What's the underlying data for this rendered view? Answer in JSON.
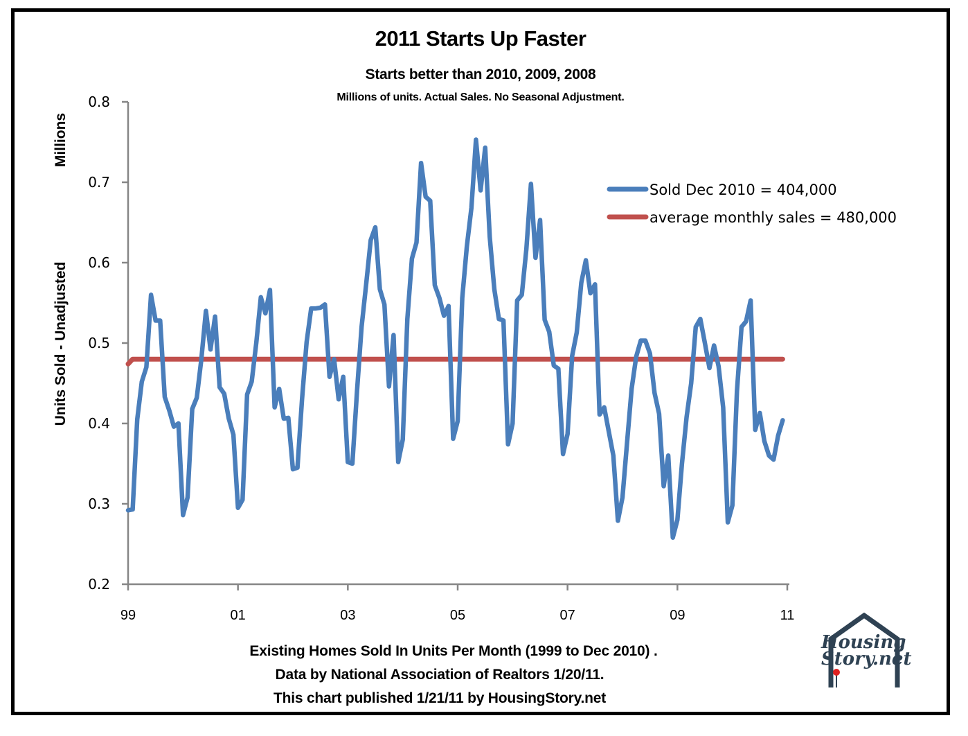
{
  "chart_data": {
    "type": "line",
    "title": "2011 Starts Up Faster",
    "subtitle": "Starts better than 2010, 2009, 2008",
    "note": "Millions of units. Actual Sales. No Seasonal Adjustment.",
    "ylabel_units": "Millions",
    "ylabel": "Units Sold - Unadjusted",
    "xlabel": "",
    "ylim": [
      0.2,
      0.8
    ],
    "yticks": [
      "0.2",
      "0.3",
      "0.4",
      "0.5",
      "0.6",
      "0.7",
      "0.8"
    ],
    "ytick_values": [
      0.2,
      0.3,
      0.4,
      0.5,
      0.6,
      0.7,
      0.8
    ],
    "xticks": [
      "99",
      "01",
      "03",
      "05",
      "07",
      "09",
      "11"
    ],
    "xtick_values": [
      1999,
      2001,
      2003,
      2005,
      2007,
      2009,
      2011
    ],
    "xlim": [
      1999,
      2011
    ],
    "grid": false,
    "legend_position": "top-right",
    "series": [
      {
        "name": "Sold Dec 2010 =  404,000",
        "color": "#4a7ebb",
        "x_start": 1999.0,
        "x_step_months": 1,
        "values": [
          0.292,
          0.293,
          0.405,
          0.452,
          0.47,
          0.56,
          0.528,
          0.528,
          0.433,
          0.416,
          0.396,
          0.4,
          0.286,
          0.308,
          0.418,
          0.432,
          0.48,
          0.54,
          0.492,
          0.533,
          0.445,
          0.437,
          0.406,
          0.386,
          0.295,
          0.305,
          0.436,
          0.452,
          0.5,
          0.557,
          0.537,
          0.566,
          0.42,
          0.443,
          0.406,
          0.407,
          0.343,
          0.345,
          0.43,
          0.501,
          0.543,
          0.543,
          0.544,
          0.548,
          0.458,
          0.48,
          0.43,
          0.458,
          0.352,
          0.35,
          0.44,
          0.52,
          0.573,
          0.628,
          0.644,
          0.567,
          0.548,
          0.446,
          0.51,
          0.352,
          0.38,
          0.53,
          0.605,
          0.625,
          0.724,
          0.682,
          0.677,
          0.572,
          0.556,
          0.534,
          0.546,
          0.381,
          0.403,
          0.556,
          0.62,
          0.668,
          0.753,
          0.69,
          0.743,
          0.632,
          0.567,
          0.53,
          0.528,
          0.374,
          0.4,
          0.553,
          0.56,
          0.617,
          0.698,
          0.606,
          0.653,
          0.529,
          0.514,
          0.472,
          0.468,
          0.362,
          0.387,
          0.484,
          0.513,
          0.575,
          0.603,
          0.562,
          0.573,
          0.411,
          0.42,
          0.39,
          0.36,
          0.279,
          0.308,
          0.376,
          0.443,
          0.483,
          0.503,
          0.503,
          0.487,
          0.438,
          0.412,
          0.322,
          0.36,
          0.258,
          0.28,
          0.35,
          0.408,
          0.45,
          0.52,
          0.53,
          0.5,
          0.469,
          0.497,
          0.471,
          0.42,
          0.277,
          0.298,
          0.44,
          0.52,
          0.527,
          0.553,
          0.392,
          0.413,
          0.378,
          0.36,
          0.355,
          0.385,
          0.404
        ]
      },
      {
        "name": "average monthly sales = 480,000",
        "color": "#c0504d",
        "x_start": 1999.0,
        "x_step_months": 1,
        "values_constant": 0.48,
        "start_value": 0.474,
        "count": 144
      }
    ]
  },
  "footer": {
    "line1": "Existing Homes Sold In Units Per Month (1999 to Dec 2010) .",
    "line2": "Data by National Association of Realtors 1/20/11.",
    "line3": "This chart published 1/21/11 by HousingStory.net"
  },
  "logo": {
    "line1": "Housing",
    "line2": "Story.net",
    "roof_color": "#2f4253",
    "flower_color": "#e02020"
  }
}
